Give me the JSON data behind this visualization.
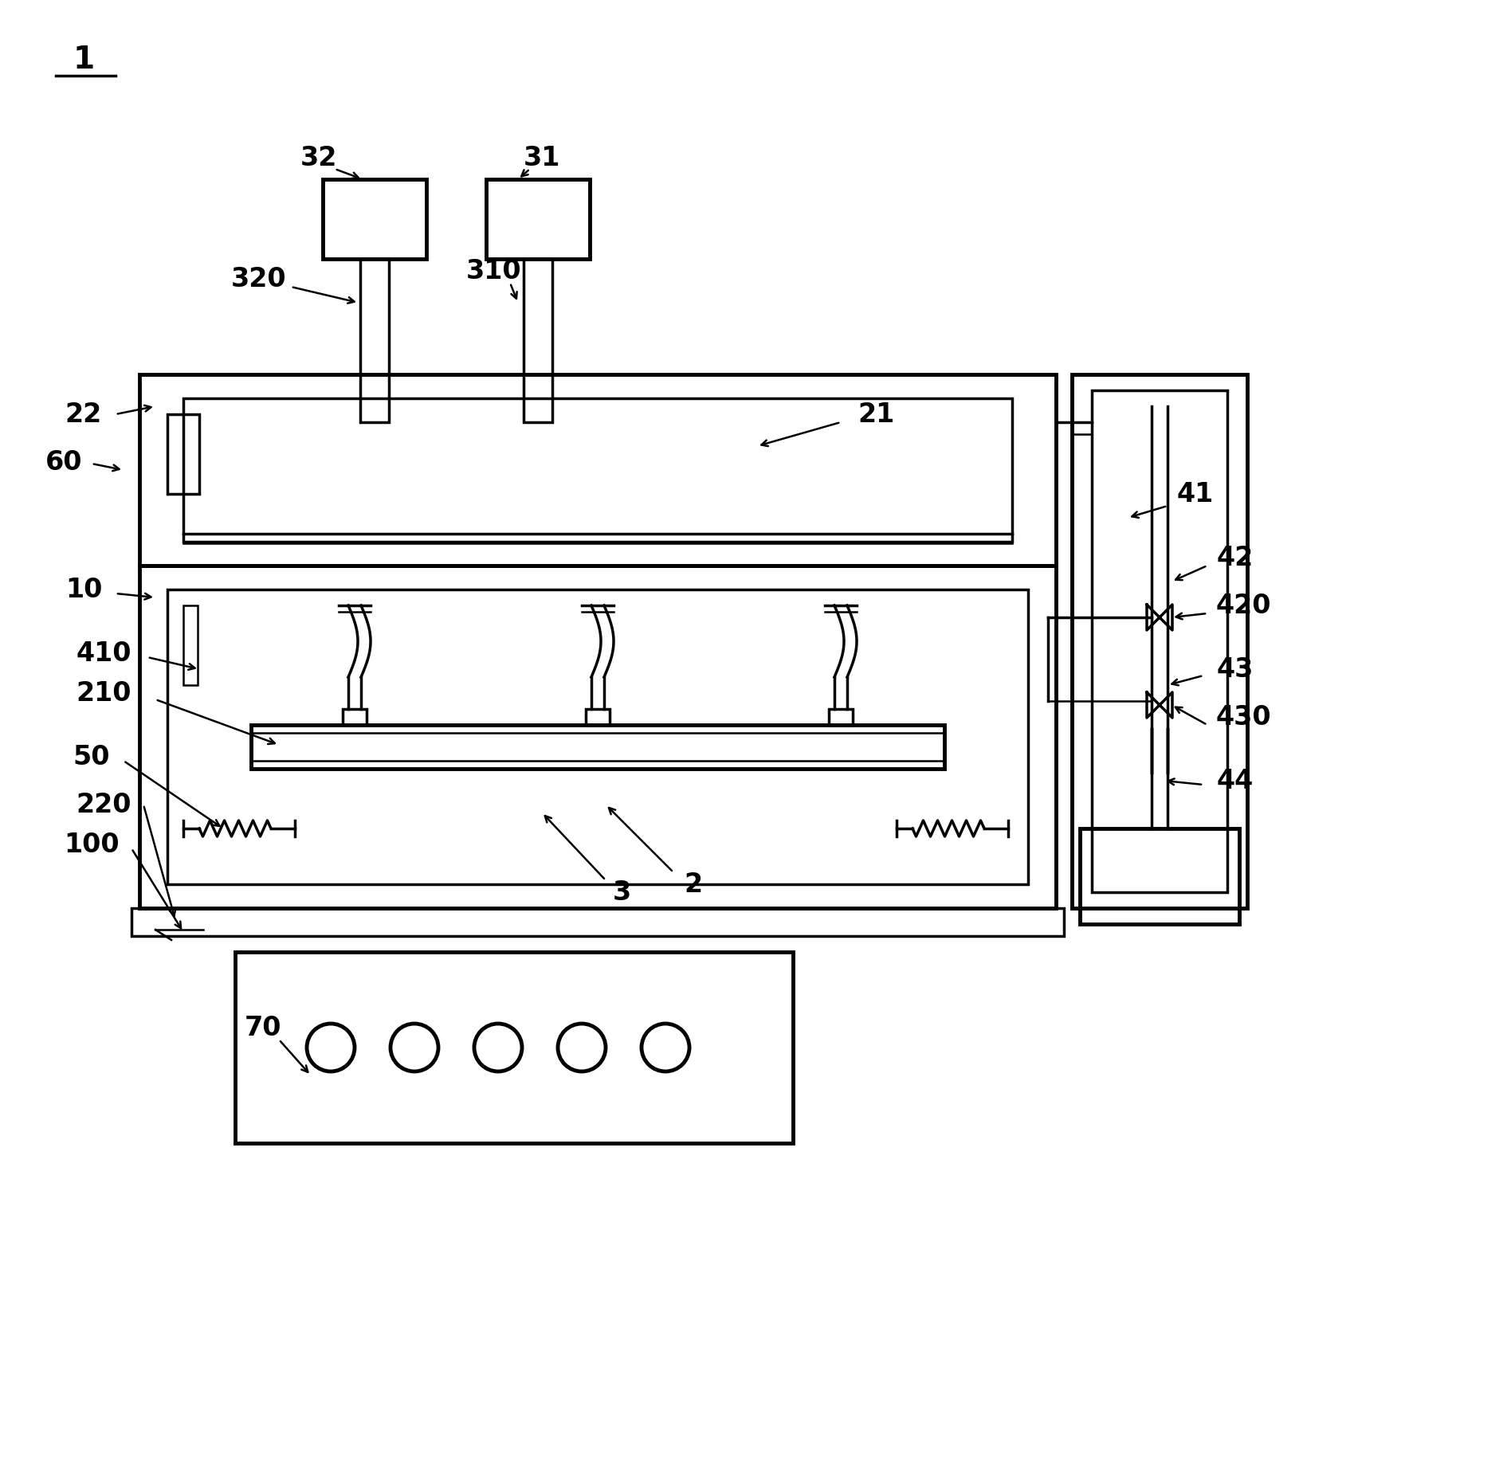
{
  "bg_color": "#ffffff",
  "line_color": "#000000",
  "figsize": [
    18.96,
    18.29
  ],
  "dpi": 100,
  "font_size": 24,
  "lw_thick": 3.5,
  "lw_med": 2.5,
  "lw_thin": 1.8
}
